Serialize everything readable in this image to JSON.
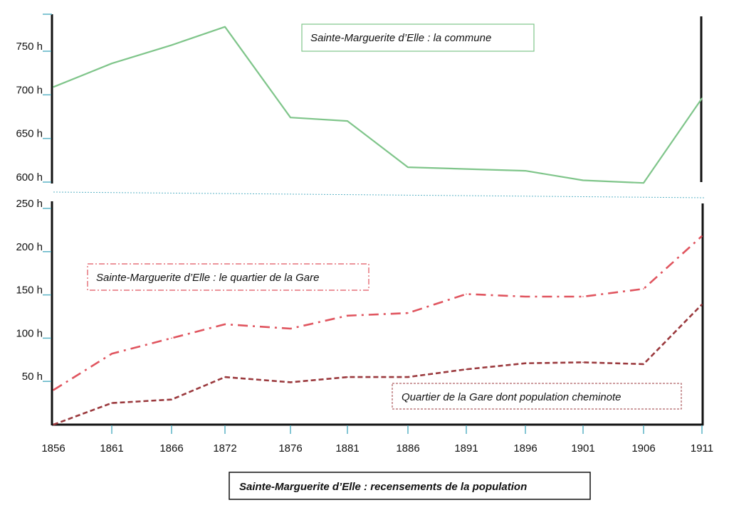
{
  "chart_data": {
    "type": "line",
    "title": "Sainte-Marguerite d’Elle : recensements de la population",
    "xlabel": "",
    "ylabel": "",
    "grid": false,
    "categories": [
      "1856",
      "1861",
      "1866",
      "1872",
      "1876",
      "1881",
      "1886",
      "1891",
      "1896",
      "1901",
      "1906",
      "1911"
    ],
    "x": [
      1856,
      1861,
      1866,
      1872,
      1876,
      1881,
      1886,
      1891,
      1896,
      1901,
      1906,
      1911
    ],
    "panels": [
      {
        "name": "top",
        "ylim": [
          595,
          790
        ],
        "yticks": [
          600,
          650,
          700,
          750
        ],
        "ytick_labels": [
          "600 h",
          "650 h",
          "700 h",
          "750 h"
        ],
        "series": [
          {
            "name": "Sainte-Marguerite d’Elle : la commune",
            "color": "#7fc58a",
            "style": "solid",
            "values": [
              709,
              736,
              757,
              778,
              674,
              670,
              617,
              615,
              613,
              602,
              599,
              696
            ]
          }
        ]
      },
      {
        "name": "bottom",
        "ylim": [
          0,
          255
        ],
        "yticks": [
          50,
          100,
          150,
          200,
          250
        ],
        "ytick_labels": [
          "50 h",
          "100 h",
          "150 h",
          "200 h",
          "250 h"
        ],
        "series": [
          {
            "name": "Sainte-Marguerite d’Elle : le quartier de la Gare",
            "color": "#e0555f",
            "style": "dashdot",
            "values": [
              40,
              82,
              100,
              116,
              111,
              126,
              129,
              151,
              148,
              148,
              157,
              218
            ]
          },
          {
            "name": "Quartier de la Gare dont population cheminote",
            "color": "#9b3a3e",
            "style": "dashed",
            "values": [
              0,
              25,
              29,
              55,
              49,
              55,
              55,
              64,
              71,
              72,
              70,
              139
            ]
          }
        ]
      }
    ],
    "legend": {
      "commune": "Sainte-Marguerite d’Elle : la commune",
      "gare": "Sainte-Marguerite d’Elle : le quartier de la Gare",
      "cheminote": "Quartier de la Gare dont population cheminote"
    },
    "colors": {
      "axis": "#111111",
      "tick": "#5bb3c6",
      "separator": "#5bb3c6"
    }
  }
}
